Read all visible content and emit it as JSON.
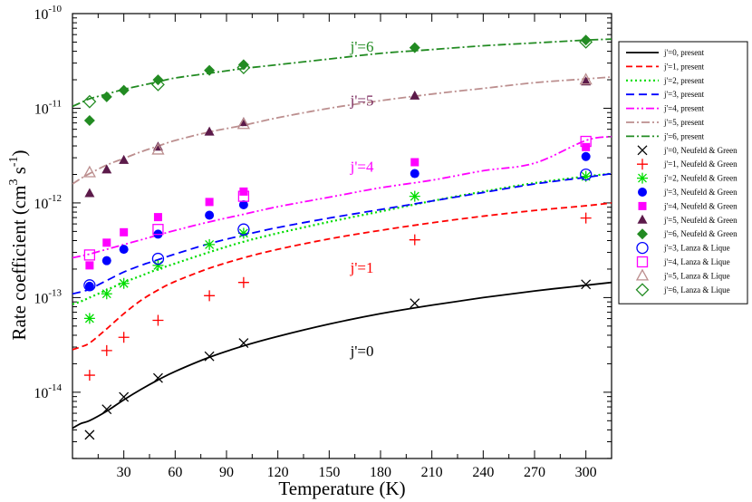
{
  "chart_data": {
    "type": "line",
    "title": "",
    "xlabel": "Temperature (K)",
    "ylabel_main": "Rate coefficient (cm",
    "ylabel_sup1": "3",
    "ylabel_mid": " s",
    "ylabel_sup2": "-1",
    "ylabel_end": ")",
    "xlim": [
      0,
      315
    ],
    "ylim_log10": [
      -14.7,
      -10
    ],
    "y_scale": "log",
    "x_ticks": [
      30,
      60,
      90,
      120,
      150,
      180,
      210,
      240,
      270,
      300
    ],
    "x_tick_labels": [
      "30",
      "60",
      "90",
      "120",
      "150",
      "180",
      "210",
      "240",
      "270",
      "300"
    ],
    "y_ticks_log10": [
      -14,
      -13,
      -12,
      -11,
      -10
    ],
    "y_tick_base": "10",
    "y_tick_exps": [
      "-14",
      "-13",
      "-12",
      "-11",
      "-10"
    ],
    "curve_labels": [
      {
        "text": "j'=6",
        "T": 148,
        "log10k": -10.4,
        "color": "#228b22"
      },
      {
        "text": "j'=5",
        "T": 148,
        "log10k": -10.97,
        "color": "#7b2a5e"
      },
      {
        "text": "j'=4",
        "T": 148,
        "log10k": -11.67,
        "color": "#ff00ff"
      },
      {
        "text": "j'=1",
        "T": 148,
        "log10k": -12.74,
        "color": "#ff0000"
      },
      {
        "text": "j'=0",
        "T": 148,
        "log10k": -13.62,
        "color": "#000000"
      }
    ],
    "series": [
      {
        "name": "j'=0, present",
        "kind": "line",
        "color": "#000000",
        "dash": "",
        "width": 1.8,
        "x": [
          0,
          5,
          10,
          20,
          30,
          40,
          50,
          60,
          80,
          100,
          120,
          150,
          180,
          210,
          240,
          270,
          300,
          315
        ],
        "log10y": [
          -14.38,
          -14.33,
          -14.3,
          -14.2,
          -14.08,
          -13.97,
          -13.87,
          -13.78,
          -13.63,
          -13.51,
          -13.41,
          -13.28,
          -13.17,
          -13.08,
          -13.0,
          -12.93,
          -12.87,
          -12.84
        ]
      },
      {
        "name": "j'=1, present",
        "kind": "line",
        "color": "#ff0000",
        "dash": "7,4",
        "width": 1.8,
        "x": [
          0,
          5,
          10,
          20,
          30,
          40,
          50,
          60,
          80,
          100,
          120,
          150,
          180,
          210,
          240,
          270,
          300,
          315
        ],
        "log10y": [
          -13.55,
          -13.52,
          -13.48,
          -13.33,
          -13.17,
          -13.03,
          -12.92,
          -12.83,
          -12.69,
          -12.58,
          -12.49,
          -12.38,
          -12.29,
          -12.21,
          -12.14,
          -12.08,
          -12.03,
          -12.0
        ]
      },
      {
        "name": "j'=2, present",
        "kind": "line",
        "color": "#00dd00",
        "dash": "2,3",
        "width": 2.2,
        "x": [
          0,
          5,
          10,
          20,
          30,
          40,
          50,
          60,
          80,
          100,
          120,
          150,
          180,
          210,
          240,
          270,
          300,
          315
        ],
        "log10y": [
          -13.07,
          -13.04,
          -13.0,
          -12.92,
          -12.84,
          -12.77,
          -12.7,
          -12.64,
          -12.52,
          -12.41,
          -12.32,
          -12.2,
          -12.09,
          -11.98,
          -11.88,
          -11.79,
          -11.72,
          -11.69
        ]
      },
      {
        "name": "j'=3, present",
        "kind": "line",
        "color": "#0000ff",
        "dash": "9,5",
        "width": 1.8,
        "x": [
          0,
          5,
          10,
          20,
          30,
          40,
          50,
          60,
          80,
          100,
          120,
          150,
          180,
          210,
          240,
          270,
          300,
          315
        ],
        "log10y": [
          -12.96,
          -12.94,
          -12.91,
          -12.82,
          -12.73,
          -12.66,
          -12.6,
          -12.54,
          -12.43,
          -12.34,
          -12.26,
          -12.16,
          -12.07,
          -11.98,
          -11.89,
          -11.8,
          -11.73,
          -11.69
        ]
      },
      {
        "name": "j'=4, present",
        "kind": "line",
        "color": "#ff00ff",
        "dash": "9,3,2,3,2,3",
        "width": 1.8,
        "x": [
          0,
          5,
          10,
          20,
          30,
          40,
          50,
          60,
          80,
          100,
          120,
          150,
          180,
          210,
          240,
          270,
          300,
          315
        ],
        "log10y": [
          -12.58,
          -12.56,
          -12.54,
          -12.49,
          -12.44,
          -12.39,
          -12.34,
          -12.29,
          -12.2,
          -12.12,
          -12.04,
          -11.94,
          -11.84,
          -11.76,
          -11.66,
          -11.58,
          -11.34,
          -11.3
        ]
      },
      {
        "name": "j'=5, present",
        "kind": "line",
        "color": "#bc8f8f",
        "dash": "9,3,2,3",
        "width": 1.8,
        "x": [
          0,
          5,
          10,
          20,
          30,
          40,
          50,
          60,
          80,
          100,
          120,
          150,
          180,
          210,
          240,
          270,
          300,
          315
        ],
        "log10y": [
          -11.8,
          -11.74,
          -11.69,
          -11.6,
          -11.53,
          -11.46,
          -11.4,
          -11.34,
          -11.25,
          -11.18,
          -11.1,
          -11.0,
          -10.92,
          -10.85,
          -10.79,
          -10.73,
          -10.69,
          -10.67
        ]
      },
      {
        "name": "j'=6, present",
        "kind": "line",
        "color": "#228b22",
        "dash": "9,3,2,3",
        "width": 1.8,
        "x": [
          0,
          5,
          10,
          20,
          30,
          40,
          50,
          60,
          80,
          100,
          120,
          150,
          180,
          210,
          240,
          270,
          300,
          315
        ],
        "log10y": [
          -10.98,
          -10.94,
          -10.9,
          -10.85,
          -10.8,
          -10.76,
          -10.72,
          -10.68,
          -10.63,
          -10.58,
          -10.54,
          -10.48,
          -10.42,
          -10.38,
          -10.34,
          -10.31,
          -10.28,
          -10.27
        ]
      },
      {
        "name": "j'=0, Neufeld & Green",
        "kind": "marker",
        "marker": "x",
        "color": "#000000",
        "x": [
          10,
          20,
          30,
          50,
          80,
          100,
          200,
          300
        ],
        "log10y": [
          -14.45,
          -14.18,
          -14.05,
          -13.85,
          -13.62,
          -13.48,
          -13.06,
          -12.86
        ]
      },
      {
        "name": "j'=1, Neufeld & Green",
        "kind": "marker",
        "marker": "plus",
        "color": "#ff0000",
        "x": [
          10,
          20,
          30,
          50,
          80,
          100,
          200,
          300
        ],
        "log10y": [
          -13.82,
          -13.56,
          -13.42,
          -13.24,
          -12.98,
          -12.84,
          -12.39,
          -12.16
        ]
      },
      {
        "name": "j'=2, Neufeld & Green",
        "kind": "marker",
        "marker": "star",
        "color": "#00dd00",
        "x": [
          10,
          20,
          30,
          50,
          80,
          100,
          200,
          300
        ],
        "log10y": [
          -13.22,
          -12.96,
          -12.85,
          -12.66,
          -12.44,
          -12.32,
          -11.93,
          -11.72
        ]
      },
      {
        "name": "j'=3, Neufeld & Green",
        "kind": "marker",
        "marker": "circle",
        "color": "#0000ff",
        "x": [
          10,
          20,
          30,
          50,
          80,
          100,
          200,
          300
        ],
        "log10y": [
          -12.88,
          -12.61,
          -12.49,
          -12.33,
          -12.13,
          -12.02,
          -11.69,
          -11.51
        ]
      },
      {
        "name": "j'=4, Neufeld & Green",
        "kind": "marker",
        "marker": "square",
        "color": "#ff00ff",
        "x": [
          10,
          20,
          30,
          50,
          80,
          100,
          200,
          300
        ],
        "log10y": [
          -12.66,
          -12.42,
          -12.31,
          -12.15,
          -11.99,
          -11.88,
          -11.57,
          -11.41
        ]
      },
      {
        "name": "j'=5, Neufeld & Green",
        "kind": "marker",
        "marker": "triangle",
        "color": "#5c1a4a",
        "x": [
          10,
          20,
          30,
          50,
          80,
          100,
          200,
          300
        ],
        "log10y": [
          -11.9,
          -11.65,
          -11.55,
          -11.41,
          -11.25,
          -11.15,
          -10.87,
          -10.72
        ]
      },
      {
        "name": "j'=6, Neufeld & Green",
        "kind": "marker",
        "marker": "diamond",
        "color": "#228b22",
        "x": [
          10,
          20,
          30,
          50,
          80,
          100,
          200,
          300
        ],
        "log10y": [
          -11.13,
          -10.88,
          -10.81,
          -10.7,
          -10.6,
          -10.54,
          -10.36,
          -10.28
        ]
      },
      {
        "name": "j'=3, Lanza & Lique",
        "kind": "marker",
        "marker": "open-circle",
        "color": "#0000ff",
        "x": [
          10,
          50,
          100,
          300
        ],
        "log10y": [
          -12.87,
          -12.59,
          -12.28,
          -11.7
        ]
      },
      {
        "name": "j'=4, Lanza & Lique",
        "kind": "marker",
        "marker": "open-square",
        "color": "#ff00ff",
        "x": [
          10,
          50,
          100,
          300
        ],
        "log10y": [
          -12.55,
          -12.28,
          -11.93,
          -11.35
        ]
      },
      {
        "name": "j'=5, Lanza & Lique",
        "kind": "marker",
        "marker": "open-triangle",
        "color": "#bc8f8f",
        "x": [
          10,
          50,
          100,
          300
        ],
        "log10y": [
          -11.68,
          -11.44,
          -11.17,
          -10.7
        ]
      },
      {
        "name": "j'=6, Lanza & Lique",
        "kind": "marker",
        "marker": "open-diamond",
        "color": "#228b22",
        "x": [
          10,
          50,
          100,
          300
        ],
        "log10y": [
          -10.93,
          -10.75,
          -10.57,
          -10.3
        ]
      }
    ],
    "legend_position": "right"
  }
}
